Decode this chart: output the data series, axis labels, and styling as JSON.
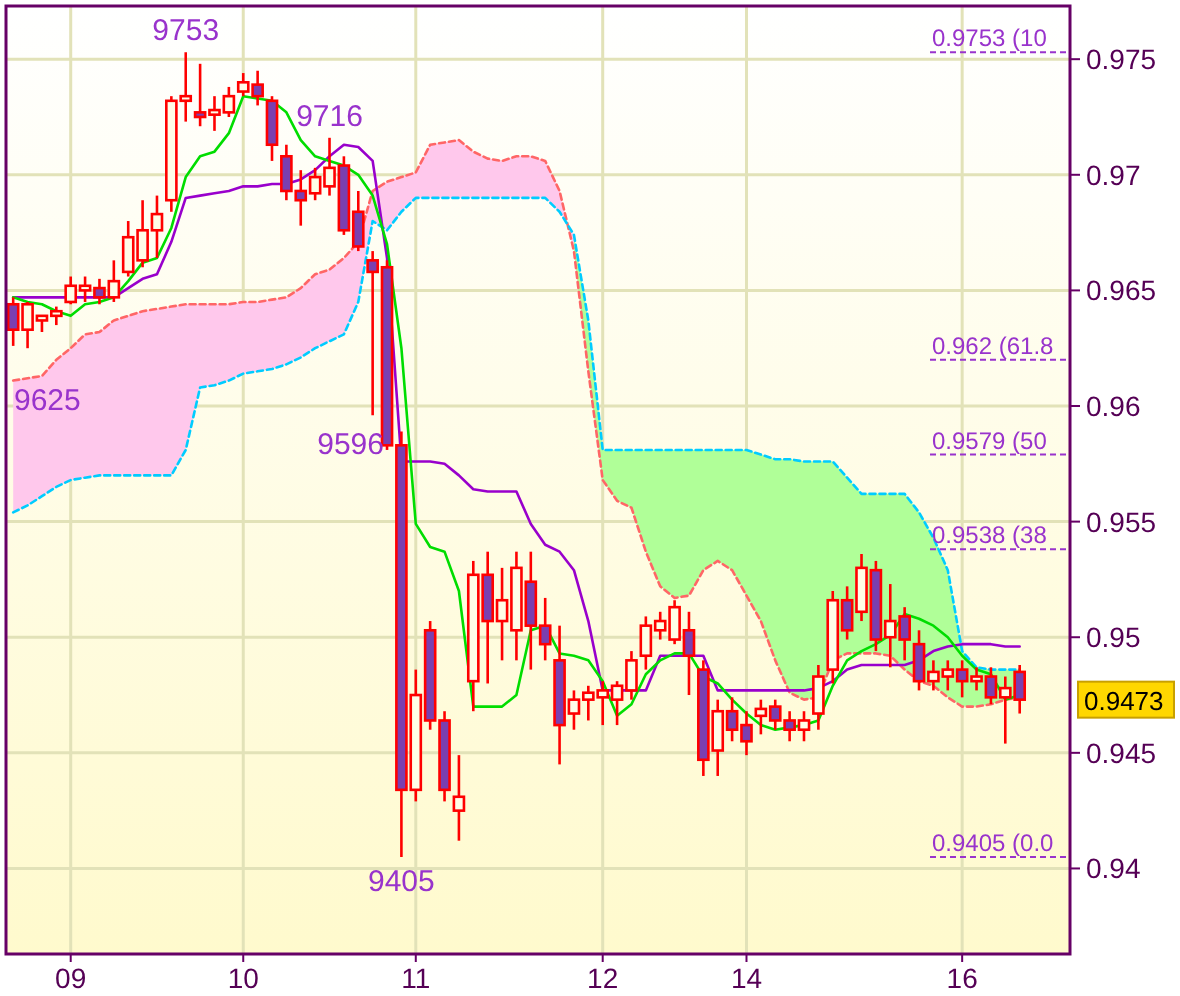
{
  "chart_data": {
    "type": "candlestick",
    "color": "#ff0000",
    "categories": [
      null,
      null,
      null,
      null,
      "09",
      null,
      null,
      null,
      null,
      null,
      null,
      null,
      null,
      null,
      null,
      null,
      "10",
      null,
      null,
      null,
      null,
      null,
      null,
      null,
      null,
      null,
      null,
      null,
      "11",
      null,
      null,
      null,
      null,
      null,
      null,
      null,
      null,
      null,
      null,
      null,
      null,
      "12",
      null,
      null,
      null,
      null,
      null,
      null,
      null,
      null,
      null,
      "14",
      null,
      null,
      null,
      null,
      null,
      null,
      null,
      null,
      null,
      null,
      null,
      null,
      null,
      null,
      "16",
      null,
      null,
      null,
      null,
      null,
      null,
      null
    ],
    "ohlc": [
      [
        0.9644,
        0.9647,
        0.9626,
        0.9633
      ],
      [
        0.9633,
        0.9645,
        0.9625,
        0.9644
      ],
      [
        0.9637,
        0.9639,
        0.9632,
        0.9639
      ],
      [
        0.9639,
        0.9643,
        0.9635,
        0.9641
      ],
      [
        0.9645,
        0.9656,
        0.9644,
        0.9652
      ],
      [
        0.965,
        0.9656,
        0.9645,
        0.9652
      ],
      [
        0.9651,
        0.9655,
        0.9644,
        0.9647
      ],
      [
        0.9647,
        0.9663,
        0.9645,
        0.9654
      ],
      [
        0.9658,
        0.968,
        0.9656,
        0.9673
      ],
      [
        0.9663,
        0.9689,
        0.966,
        0.9676
      ],
      [
        0.9676,
        0.9691,
        0.9664,
        0.9683
      ],
      [
        0.9689,
        0.9734,
        0.9684,
        0.9732
      ],
      [
        0.9732,
        0.9753,
        0.9723,
        0.9734
      ],
      [
        0.9727,
        0.9748,
        0.9721,
        0.9725
      ],
      [
        0.9726,
        0.9734,
        0.9719,
        0.9728
      ],
      [
        0.9727,
        0.9738,
        0.9725,
        0.9734
      ],
      [
        0.9736,
        0.9744,
        0.9734,
        0.974
      ],
      [
        0.9739,
        0.9745,
        0.973,
        0.9734
      ],
      [
        0.9732,
        0.9734,
        0.9706,
        0.9713
      ],
      [
        0.9708,
        0.9713,
        0.9689,
        0.9693
      ],
      [
        0.9693,
        0.9702,
        0.9678,
        0.9689
      ],
      [
        0.9692,
        0.9703,
        0.9689,
        0.9699
      ],
      [
        0.9695,
        0.9716,
        0.9691,
        0.9703
      ],
      [
        0.9704,
        0.9708,
        0.9674,
        0.9676
      ],
      [
        0.9684,
        0.9693,
        0.9667,
        0.9669
      ],
      [
        0.9663,
        0.9667,
        0.9596,
        0.9658
      ],
      [
        0.966,
        0.9663,
        0.9581,
        0.9583
      ],
      [
        0.9583,
        0.9589,
        0.9405,
        0.9434
      ],
      [
        0.9434,
        0.9486,
        0.9429,
        0.9475
      ],
      [
        0.9503,
        0.9507,
        0.946,
        0.9464
      ],
      [
        0.9464,
        0.9468,
        0.9429,
        0.9434
      ],
      [
        0.9425,
        0.9449,
        0.9412,
        0.9431
      ],
      [
        0.9481,
        0.9533,
        0.9468,
        0.9527
      ],
      [
        0.9527,
        0.9537,
        0.948,
        0.9507
      ],
      [
        0.9507,
        0.953,
        0.949,
        0.9516
      ],
      [
        0.9503,
        0.9537,
        0.949,
        0.953
      ],
      [
        0.9524,
        0.9537,
        0.9486,
        0.9505
      ],
      [
        0.9505,
        0.9517,
        0.949,
        0.9497
      ],
      [
        0.949,
        0.9505,
        0.9445,
        0.9462
      ],
      [
        0.9467,
        0.9477,
        0.946,
        0.9473
      ],
      [
        0.9473,
        0.9479,
        0.9464,
        0.9476
      ],
      [
        0.9474,
        0.9481,
        0.9462,
        0.9477
      ],
      [
        0.9473,
        0.9481,
        0.9462,
        0.9479
      ],
      [
        0.9477,
        0.9494,
        0.9473,
        0.949
      ],
      [
        0.9492,
        0.9509,
        0.9486,
        0.9505
      ],
      [
        0.9503,
        0.9511,
        0.9499,
        0.9507
      ],
      [
        0.9499,
        0.9516,
        0.9497,
        0.9513
      ],
      [
        0.9503,
        0.9511,
        0.9475,
        0.9492
      ],
      [
        0.9486,
        0.949,
        0.944,
        0.9447
      ],
      [
        0.9451,
        0.9473,
        0.944,
        0.9468
      ],
      [
        0.9468,
        0.9474,
        0.9455,
        0.946
      ],
      [
        0.9462,
        0.9468,
        0.9449,
        0.9455
      ],
      [
        0.9466,
        0.9473,
        0.9458,
        0.9469
      ],
      [
        0.947,
        0.9473,
        0.946,
        0.9464
      ],
      [
        0.9464,
        0.9468,
        0.9455,
        0.946
      ],
      [
        0.946,
        0.9468,
        0.9455,
        0.9464
      ],
      [
        0.9467,
        0.9488,
        0.946,
        0.9483
      ],
      [
        0.9486,
        0.952,
        0.948,
        0.9516
      ],
      [
        0.9516,
        0.9522,
        0.9499,
        0.9503
      ],
      [
        0.9511,
        0.9536,
        0.9507,
        0.953
      ],
      [
        0.9529,
        0.9533,
        0.9494,
        0.9499
      ],
      [
        0.95,
        0.9523,
        0.9487,
        0.9507
      ],
      [
        0.9509,
        0.9513,
        0.949,
        0.9499
      ],
      [
        0.9497,
        0.9503,
        0.9477,
        0.9481
      ],
      [
        0.9481,
        0.949,
        0.9477,
        0.9485
      ],
      [
        0.9483,
        0.949,
        0.9477,
        0.9486
      ],
      [
        0.9486,
        0.949,
        0.9474,
        0.9481
      ],
      [
        0.9481,
        0.9487,
        0.9477,
        0.9483
      ],
      [
        0.9483,
        0.9487,
        0.9471,
        0.9474
      ],
      [
        0.9474,
        0.9483,
        0.9454,
        0.9478
      ],
      [
        0.9485,
        0.9488,
        0.9467,
        0.9473
      ],
      null,
      null,
      null
    ],
    "series": [
      {
        "type": "line",
        "line_style": "dashed",
        "color": "#ff6666",
        "values": [
          0.9611,
          0.9612,
          0.9613,
          0.962,
          0.9625,
          0.9631,
          0.9632,
          0.9637,
          0.9639,
          0.9641,
          0.9642,
          0.9643,
          0.9644,
          0.9644,
          0.9644,
          0.9644,
          0.9645,
          0.9645,
          0.9646,
          0.9647,
          0.9651,
          0.9657,
          0.9659,
          0.9664,
          0.9671,
          0.9693,
          0.9697,
          0.9699,
          0.9701,
          0.9713,
          0.9714,
          0.9715,
          0.971,
          0.9707,
          0.9706,
          0.9708,
          0.9708,
          0.9706,
          0.9693,
          0.9667,
          0.9615,
          0.9568,
          0.9559,
          0.9556,
          0.9537,
          0.9522,
          0.9517,
          0.9518,
          0.9529,
          0.9533,
          0.9529,
          0.9518,
          0.9507,
          0.949,
          0.9476,
          0.9473,
          0.9474,
          0.949,
          0.9493,
          0.9493,
          0.9493,
          0.9492,
          0.9486,
          0.9481,
          0.9479,
          0.9474,
          0.947,
          0.947,
          0.9471,
          0.9473,
          0.9474,
          null,
          null,
          null
        ]
      },
      {
        "type": "line",
        "line_style": "dashed",
        "color": "#00ccff",
        "values": [
          0.9554,
          0.9557,
          0.9561,
          0.9565,
          0.9568,
          0.9569,
          0.957,
          0.957,
          0.957,
          0.957,
          0.957,
          0.957,
          0.9581,
          0.9608,
          0.9609,
          0.9611,
          0.9614,
          0.9615,
          0.9616,
          0.9618,
          0.9621,
          0.9625,
          0.9628,
          0.9631,
          0.9645,
          0.968,
          0.9676,
          0.9684,
          0.969,
          0.969,
          0.969,
          0.969,
          0.969,
          0.969,
          0.969,
          0.969,
          0.969,
          0.969,
          0.9684,
          0.9674,
          0.9637,
          0.9581,
          0.9581,
          0.9581,
          0.9581,
          0.9581,
          0.9581,
          0.9581,
          0.9581,
          0.9581,
          0.9581,
          0.9581,
          0.9579,
          0.9577,
          0.9577,
          0.9576,
          0.9576,
          0.9576,
          0.9569,
          0.9562,
          0.9562,
          0.9562,
          0.9562,
          0.9554,
          0.9543,
          0.9529,
          0.9494,
          0.9487,
          0.9486,
          0.9486,
          0.9486,
          null,
          null,
          null
        ]
      },
      {
        "type": "line",
        "color": "#9900cc",
        "values": [
          0.9647,
          0.9647,
          0.9647,
          0.9647,
          0.9647,
          0.9647,
          0.9647,
          0.9647,
          0.9651,
          0.9655,
          0.9657,
          0.9671,
          0.969,
          0.9691,
          0.9692,
          0.9693,
          0.9695,
          0.9695,
          0.9696,
          0.9696,
          0.9698,
          0.9702,
          0.9708,
          0.9713,
          0.9712,
          0.9706,
          0.9664,
          0.9576,
          0.9576,
          0.9576,
          0.9575,
          0.957,
          0.9564,
          0.9563,
          0.9563,
          0.9563,
          0.9549,
          0.954,
          0.9537,
          0.9529,
          0.9507,
          0.9477,
          0.9477,
          0.9477,
          0.9477,
          0.9492,
          0.9492,
          0.9492,
          0.9492,
          0.9477,
          0.9477,
          0.9477,
          0.9477,
          0.9477,
          0.9477,
          0.9477,
          0.9478,
          0.9481,
          0.9486,
          0.9488,
          0.9488,
          0.9488,
          0.9488,
          0.949,
          0.9494,
          0.9496,
          0.9497,
          0.9497,
          0.9497,
          0.9496,
          0.9496,
          null,
          null,
          null
        ]
      },
      {
        "type": "line",
        "color": "#00dd00",
        "values": [
          0.9647,
          0.9645,
          0.9644,
          0.9641,
          0.9639,
          0.9644,
          0.9645,
          0.9647,
          0.9654,
          0.9662,
          0.9664,
          0.9677,
          0.9699,
          0.9708,
          0.971,
          0.9718,
          0.9734,
          0.9733,
          0.9732,
          0.9727,
          0.9715,
          0.9708,
          0.9706,
          0.9704,
          0.97,
          0.9691,
          0.967,
          0.9625,
          0.9549,
          0.9539,
          0.9537,
          0.952,
          0.947,
          0.947,
          0.947,
          0.9475,
          0.9503,
          0.9505,
          0.9493,
          0.9492,
          0.949,
          0.9481,
          0.9466,
          0.9471,
          0.9484,
          0.949,
          0.9493,
          0.9493,
          0.9483,
          0.948,
          0.9473,
          0.9467,
          0.9462,
          0.946,
          0.9461,
          0.9462,
          0.9464,
          0.9479,
          0.949,
          0.9494,
          0.9497,
          0.9501,
          0.951,
          0.9508,
          0.9505,
          0.95,
          0.9492,
          0.9486,
          0.9484,
          0.9473,
          0.9475,
          null,
          null,
          null
        ]
      }
    ],
    "ylim": [
      0.9363,
      0.9773
    ],
    "yticks": [
      0.94,
      0.945,
      0.95,
      0.955,
      0.96,
      0.965,
      0.97,
      0.975
    ],
    "grid": true,
    "annotations": [
      {
        "text": "9753",
        "y": 0.9753
      },
      {
        "text": "9716",
        "y": 0.9716
      },
      "9625",
      "9596",
      {
        "text": "9405",
        "y": 0.9405
      },
      "0.9473"
    ],
    "ref_lines": [
      {
        "axis": "y",
        "value": 0.9753,
        "label": "0.9753 (10",
        "color": "#9933cc",
        "line_style": "dashed"
      },
      {
        "axis": "y",
        "value": 0.962,
        "label": "0.962 (61.8",
        "color": "#9933cc",
        "line_style": "dashed"
      },
      {
        "axis": "y",
        "value": 0.9579,
        "label": "0.9579 (50",
        "color": "#9933cc",
        "line_style": "dashed"
      },
      {
        "axis": "y",
        "value": 0.9538,
        "label": "0.9538 (38",
        "color": "#9933cc",
        "line_style": "dashed"
      },
      {
        "axis": "y",
        "value": 0.9405,
        "label": "0.9405 (0.0",
        "color": "#9933cc",
        "line_style": "dashed"
      }
    ]
  }
}
